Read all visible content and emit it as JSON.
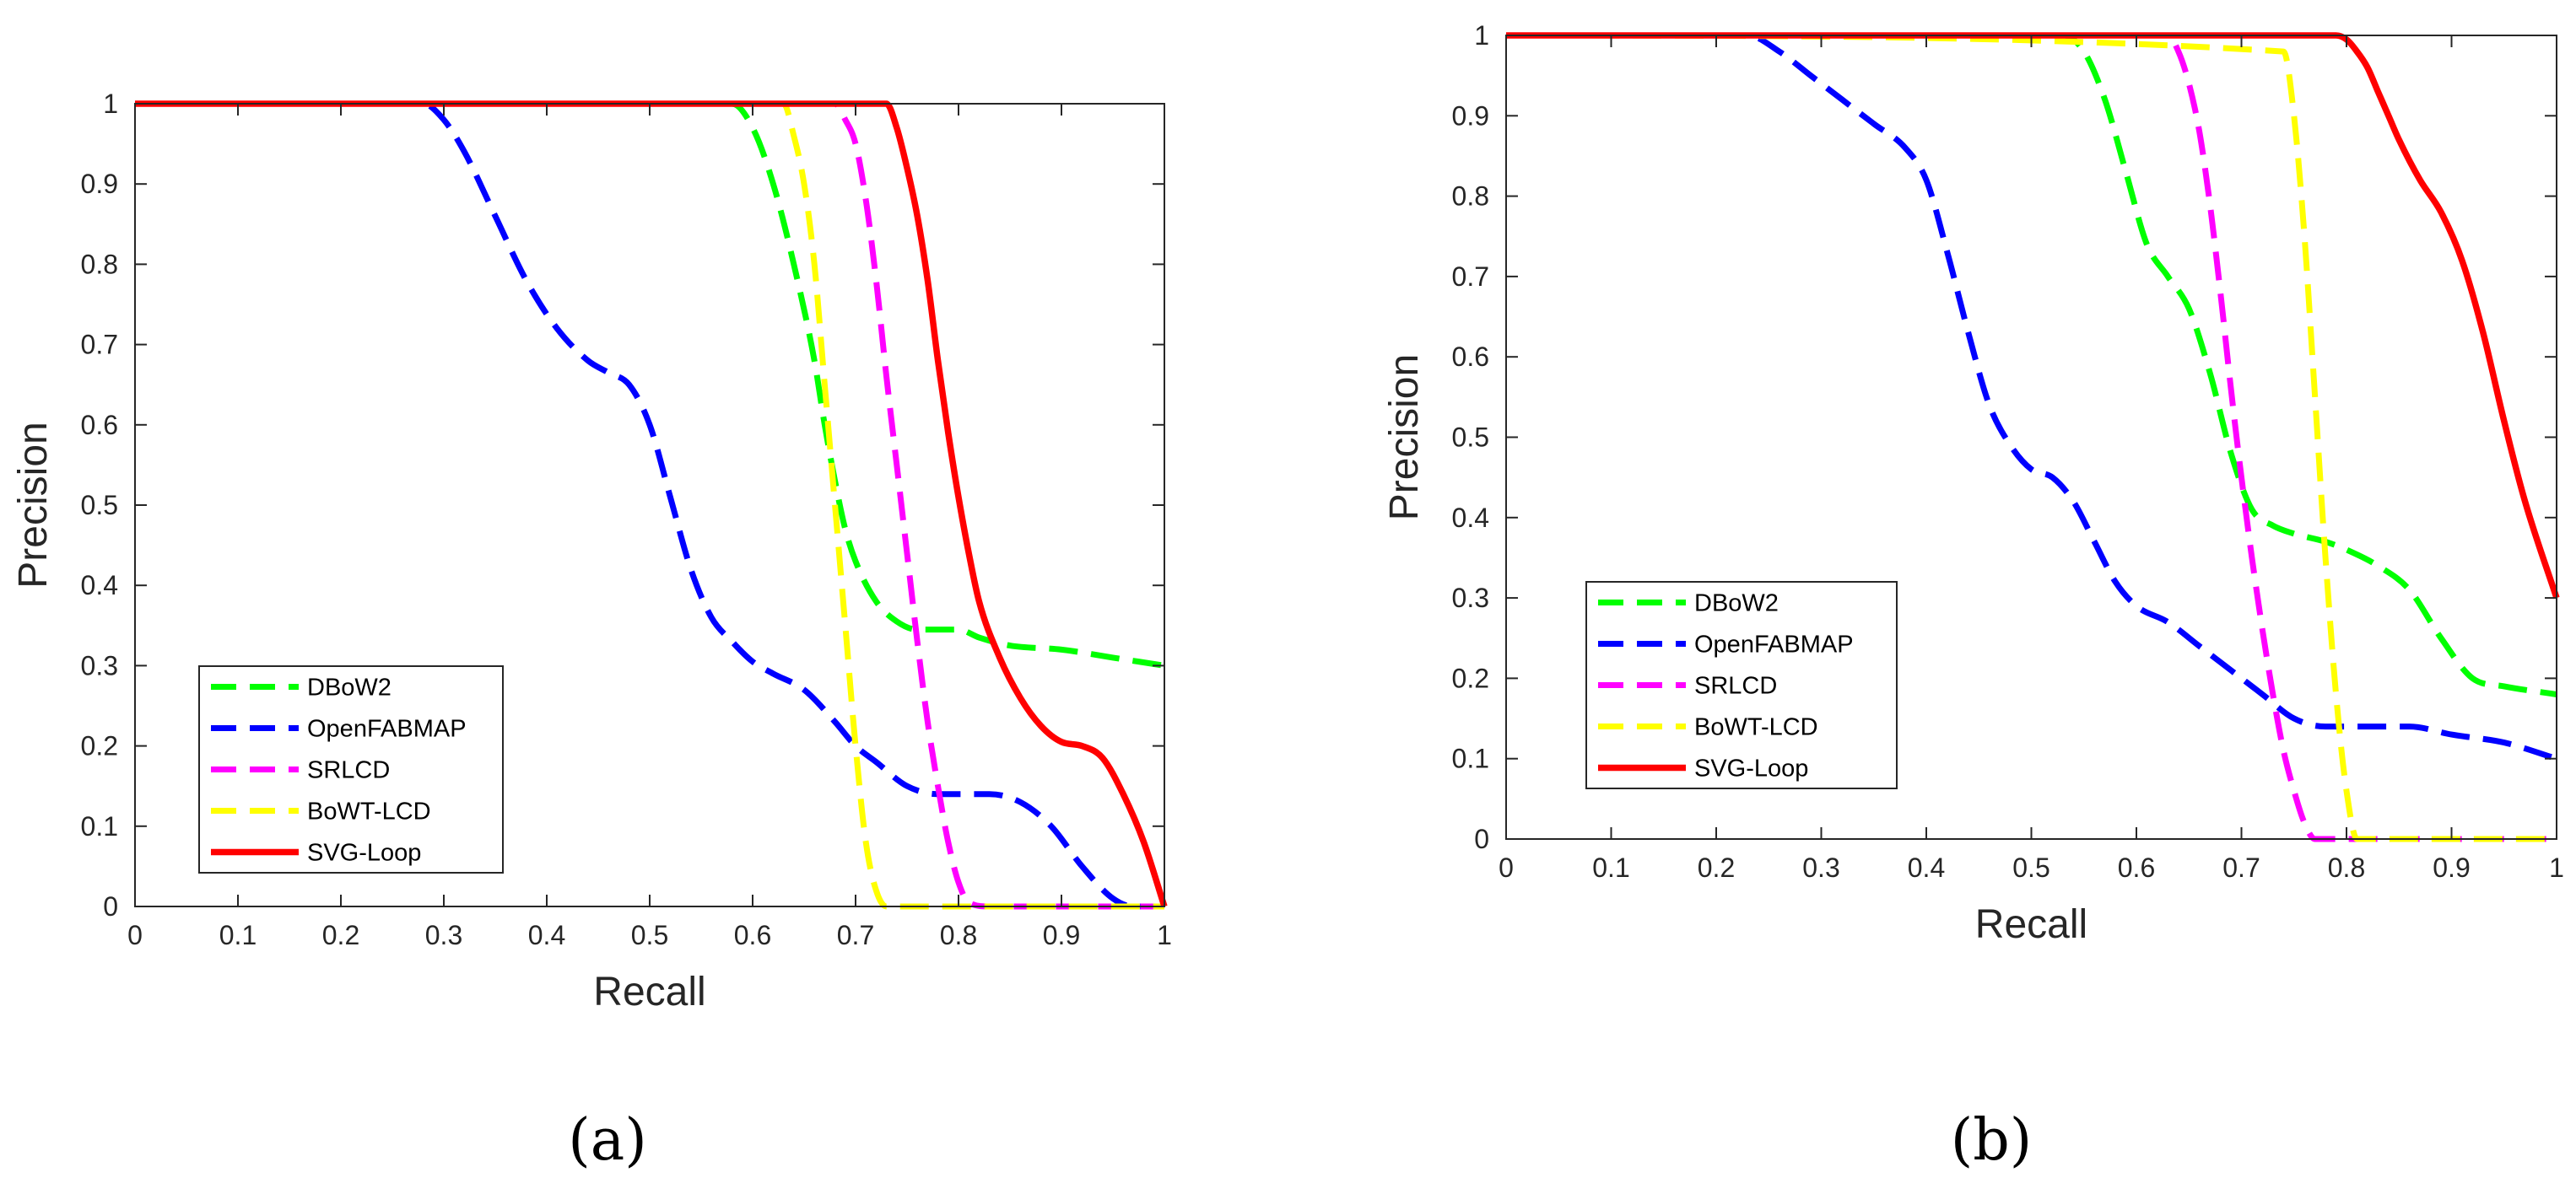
{
  "chart_data": [
    {
      "type": "line",
      "panel_label": "(a)",
      "xlabel": "Recall",
      "ylabel": "Precision",
      "xlim": [
        0,
        1
      ],
      "ylim": [
        0,
        1
      ],
      "xticks": [
        "0",
        "0.1",
        "0.2",
        "0.3",
        "0.4",
        "0.5",
        "0.6",
        "0.7",
        "0.8",
        "0.9",
        "1"
      ],
      "yticks": [
        "0",
        "0.1",
        "0.2",
        "0.3",
        "0.4",
        "0.5",
        "0.6",
        "0.7",
        "0.8",
        "0.9",
        "1"
      ],
      "legend_position": "bottom-left",
      "series": [
        {
          "name": "DBoW2",
          "color": "#00ff00",
          "style": "dashed",
          "x": [
            0,
            0.58,
            0.6,
            0.62,
            0.64,
            0.66,
            0.67,
            0.68,
            0.69,
            0.7,
            0.72,
            0.74,
            0.76,
            0.78,
            0.8,
            0.82,
            0.85,
            0.9,
            0.95,
            1.0
          ],
          "y": [
            1,
            1,
            0.97,
            0.9,
            0.8,
            0.68,
            0.6,
            0.53,
            0.47,
            0.43,
            0.38,
            0.355,
            0.345,
            0.345,
            0.345,
            0.335,
            0.325,
            0.32,
            0.31,
            0.3
          ]
        },
        {
          "name": "OpenFABMAP",
          "color": "#0000ff",
          "style": "dashed",
          "x": [
            0,
            0.28,
            0.3,
            0.32,
            0.35,
            0.38,
            0.41,
            0.44,
            0.46,
            0.48,
            0.5,
            0.52,
            0.54,
            0.56,
            0.58,
            0.6,
            0.62,
            0.65,
            0.68,
            0.7,
            0.72,
            0.75,
            0.78,
            0.8,
            0.83,
            0.86,
            0.89,
            0.92,
            0.95,
            0.97,
            1.0
          ],
          "y": [
            1,
            1,
            0.98,
            0.94,
            0.86,
            0.78,
            0.72,
            0.68,
            0.665,
            0.65,
            0.6,
            0.51,
            0.42,
            0.36,
            0.33,
            0.305,
            0.29,
            0.27,
            0.23,
            0.2,
            0.18,
            0.15,
            0.14,
            0.14,
            0.14,
            0.13,
            0.1,
            0.05,
            0.01,
            0.0,
            0.0
          ]
        },
        {
          "name": "SRLCD",
          "color": "#ff00ff",
          "style": "dashed",
          "x": [
            0,
            0.68,
            0.69,
            0.7,
            0.71,
            0.72,
            0.73,
            0.74,
            0.75,
            0.76,
            0.77,
            0.78,
            0.79,
            0.8,
            0.81,
            0.83,
            1.0
          ],
          "y": [
            1,
            1,
            0.98,
            0.95,
            0.88,
            0.78,
            0.66,
            0.55,
            0.44,
            0.33,
            0.23,
            0.15,
            0.08,
            0.03,
            0.005,
            0.0,
            0.0
          ]
        },
        {
          "name": "BoWT-LCD",
          "color": "#ffff00",
          "style": "dashed",
          "x": [
            0,
            0.63,
            0.64,
            0.65,
            0.66,
            0.67,
            0.68,
            0.69,
            0.7,
            0.71,
            0.72,
            0.73,
            1.0
          ],
          "y": [
            1,
            1,
            0.96,
            0.9,
            0.8,
            0.65,
            0.5,
            0.35,
            0.2,
            0.08,
            0.02,
            0.0,
            0.0
          ]
        },
        {
          "name": "SVG-Loop",
          "color": "#ff0000",
          "style": "solid",
          "x": [
            0,
            0.72,
            0.73,
            0.74,
            0.75,
            0.76,
            0.77,
            0.78,
            0.79,
            0.8,
            0.81,
            0.82,
            0.84,
            0.86,
            0.88,
            0.9,
            0.92,
            0.94,
            0.96,
            0.98,
            1.0
          ],
          "y": [
            1,
            1,
            1,
            0.97,
            0.92,
            0.86,
            0.78,
            0.68,
            0.59,
            0.51,
            0.44,
            0.38,
            0.31,
            0.26,
            0.225,
            0.205,
            0.2,
            0.185,
            0.14,
            0.08,
            0.0
          ]
        }
      ]
    },
    {
      "type": "line",
      "panel_label": "(b)",
      "xlabel": "Recall",
      "ylabel": "Precision",
      "xlim": [
        0,
        1
      ],
      "ylim": [
        0,
        1
      ],
      "xticks": [
        "0",
        "0.1",
        "0.2",
        "0.3",
        "0.4",
        "0.5",
        "0.6",
        "0.7",
        "0.8",
        "0.9",
        "1"
      ],
      "yticks": [
        "0",
        "0.1",
        "0.2",
        "0.3",
        "0.4",
        "0.5",
        "0.6",
        "0.7",
        "0.8",
        "0.9",
        "1"
      ],
      "legend_position": "bottom-left",
      "series": [
        {
          "name": "DBoW2",
          "color": "#00ff00",
          "style": "dashed",
          "x": [
            0,
            0.53,
            0.55,
            0.57,
            0.59,
            0.61,
            0.63,
            0.65,
            0.67,
            0.69,
            0.71,
            0.73,
            0.75,
            0.78,
            0.8,
            0.83,
            0.86,
            0.89,
            0.92,
            0.95,
            1.0
          ],
          "y": [
            1,
            1,
            0.98,
            0.92,
            0.83,
            0.74,
            0.7,
            0.66,
            0.58,
            0.48,
            0.41,
            0.39,
            0.38,
            0.37,
            0.36,
            0.34,
            0.31,
            0.25,
            0.2,
            0.19,
            0.18
          ]
        },
        {
          "name": "OpenFABMAP",
          "color": "#0000ff",
          "style": "dashed",
          "x": [
            0,
            0.23,
            0.26,
            0.29,
            0.32,
            0.35,
            0.38,
            0.4,
            0.42,
            0.44,
            0.46,
            0.48,
            0.5,
            0.52,
            0.54,
            0.56,
            0.58,
            0.6,
            0.63,
            0.66,
            0.69,
            0.72,
            0.75,
            0.78,
            0.82,
            0.86,
            0.9,
            0.95,
            1.0
          ],
          "y": [
            1,
            1,
            0.98,
            0.95,
            0.92,
            0.89,
            0.86,
            0.82,
            0.73,
            0.63,
            0.54,
            0.49,
            0.46,
            0.45,
            0.42,
            0.37,
            0.32,
            0.29,
            0.27,
            0.24,
            0.21,
            0.18,
            0.15,
            0.14,
            0.14,
            0.14,
            0.13,
            0.12,
            0.1
          ]
        },
        {
          "name": "SRLCD",
          "color": "#ff00ff",
          "style": "dashed",
          "x": [
            0,
            0.63,
            0.64,
            0.65,
            0.66,
            0.67,
            0.68,
            0.69,
            0.7,
            0.71,
            0.72,
            0.73,
            0.74,
            0.75,
            0.76,
            0.77,
            1.0
          ],
          "y": [
            1,
            1,
            0.98,
            0.94,
            0.88,
            0.79,
            0.68,
            0.56,
            0.45,
            0.35,
            0.26,
            0.18,
            0.11,
            0.06,
            0.02,
            0.0,
            0.0
          ]
        },
        {
          "name": "BoWT-LCD",
          "color": "#ffff00",
          "style": "dashed",
          "x": [
            0,
            0.74,
            0.75,
            0.76,
            0.77,
            0.78,
            0.79,
            0.8,
            0.81,
            1.0
          ],
          "y": [
            1,
            0.98,
            0.9,
            0.75,
            0.55,
            0.35,
            0.18,
            0.06,
            0.0,
            0.0
          ]
        },
        {
          "name": "SVG-Loop",
          "color": "#ff0000",
          "style": "solid",
          "x": [
            0,
            0.78,
            0.79,
            0.8,
            0.81,
            0.82,
            0.83,
            0.84,
            0.85,
            0.87,
            0.89,
            0.91,
            0.93,
            0.95,
            0.97,
            1.0
          ],
          "y": [
            1,
            1,
            1,
            0.995,
            0.98,
            0.96,
            0.93,
            0.9,
            0.87,
            0.82,
            0.78,
            0.72,
            0.63,
            0.52,
            0.42,
            0.3
          ]
        }
      ]
    }
  ]
}
